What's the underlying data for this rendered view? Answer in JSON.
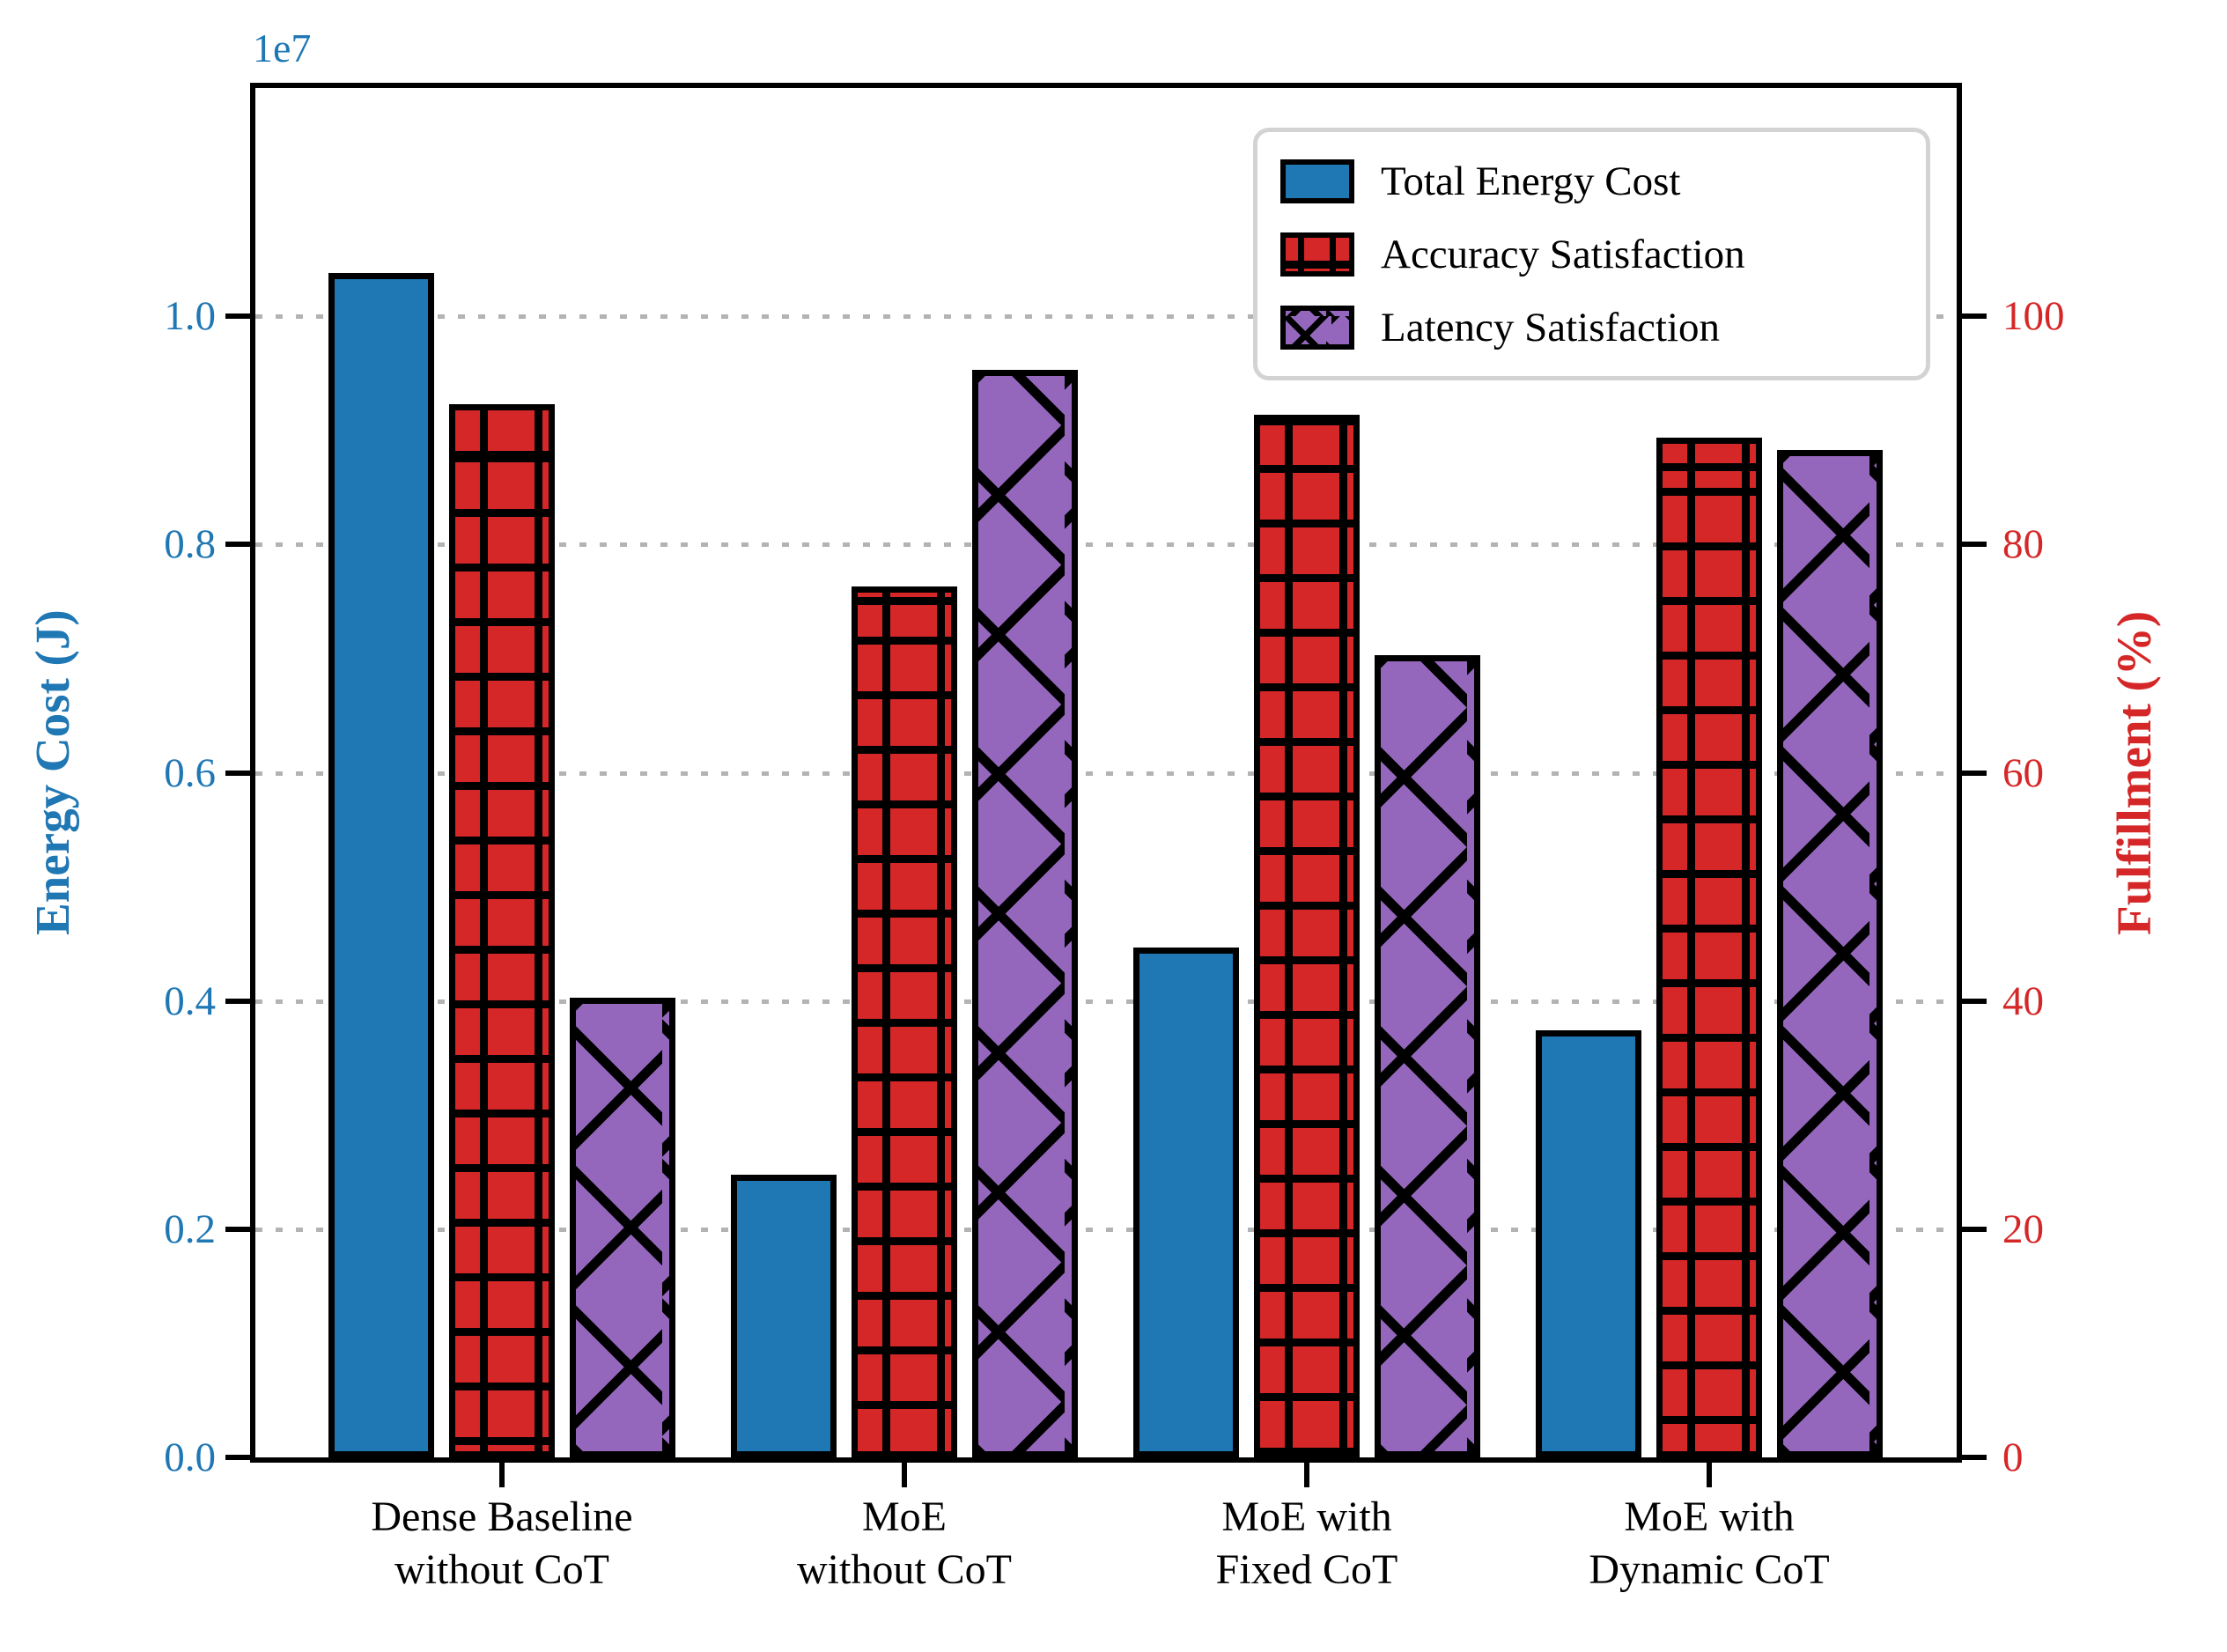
{
  "chart_data": {
    "type": "bar",
    "title": "",
    "categories": [
      "Dense Baseline\nwithout CoT",
      "MoE\nwithout CoT",
      "MoE with\nFixed CoT",
      "MoE with\nDynamic CoT"
    ],
    "series": [
      {
        "name": "Total Energy Cost",
        "axis": "left",
        "color": "#1f77b4",
        "hatch": "none",
        "values": [
          10380000,
          2480000,
          4470000,
          3740000
        ]
      },
      {
        "name": "Accuracy Satisfaction",
        "axis": "right",
        "color": "#d62728",
        "hatch": "grid",
        "values": [
          92.3,
          76.3,
          91.4,
          89.4
        ]
      },
      {
        "name": "Latency Satisfaction",
        "axis": "right",
        "color": "#9467bd",
        "hatch": "cross",
        "values": [
          40.3,
          95.3,
          70.3,
          88.3
        ]
      }
    ],
    "left_axis": {
      "label": "Energy Cost (J)",
      "offset_label": "1e7",
      "tick_labels": [
        "0.0",
        "0.2",
        "0.4",
        "0.6",
        "0.8",
        "1.0"
      ],
      "tick_values": [
        0,
        2000000,
        4000000,
        6000000,
        8000000,
        10000000
      ],
      "axis_max": 12000000,
      "color": "#1f77b4"
    },
    "right_axis": {
      "label": "Fulfillment (%)",
      "tick_labels": [
        "0",
        "20",
        "40",
        "60",
        "80",
        "100"
      ],
      "tick_values": [
        0,
        20,
        40,
        60,
        80,
        100
      ],
      "axis_max": 120,
      "color": "#d62728"
    },
    "grid": {
      "axis": "y",
      "style": "dotted",
      "color": "#b3b3b3"
    },
    "legend": {
      "position": "upper-right",
      "border_color": "#d3d3d3"
    },
    "bar_edge_color": "#000000"
  }
}
